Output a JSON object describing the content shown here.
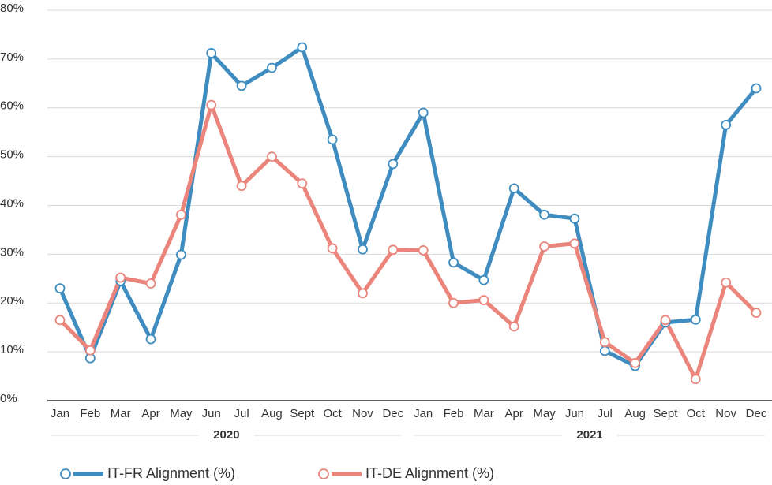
{
  "chart_data": {
    "type": "line",
    "categories": [
      "Jan",
      "Feb",
      "Mar",
      "Apr",
      "May",
      "Jun",
      "Jul",
      "Aug",
      "Sept",
      "Oct",
      "Nov",
      "Dec",
      "Jan",
      "Feb",
      "Mar",
      "Apr",
      "May",
      "Jun",
      "Jul",
      "Aug",
      "Sept",
      "Oct",
      "Nov",
      "Dec"
    ],
    "category_groups": [
      "2020",
      "2021"
    ],
    "series": [
      {
        "name": "IT-FR Alignment (%)",
        "color": "#3f8cc0",
        "values": [
          23,
          8.7,
          24.5,
          12.6,
          29.9,
          71.2,
          64.5,
          68.2,
          72.4,
          53.5,
          31,
          48.5,
          59,
          28.3,
          24.7,
          43.5,
          38.1,
          37.3,
          10.2,
          7.1,
          16,
          16.6,
          56.5,
          64
        ]
      },
      {
        "name": "IT-DE Alignment (%)",
        "color": "#eb857c",
        "values": [
          16.5,
          10.3,
          25.2,
          24,
          38.1,
          60.6,
          44,
          50,
          44.5,
          31.2,
          22,
          30.9,
          30.8,
          20,
          20.6,
          15.2,
          31.6,
          32.2,
          12,
          7.7,
          16.5,
          4.4,
          24.2,
          18
        ]
      }
    ],
    "ylim": [
      0,
      80
    ],
    "yticks": [
      {
        "value": 0,
        "label": "0%"
      },
      {
        "value": 10,
        "label": "10%"
      },
      {
        "value": 20,
        "label": "20%"
      },
      {
        "value": 30,
        "label": "30%"
      },
      {
        "value": 40,
        "label": "40%"
      },
      {
        "value": 50,
        "label": "50%"
      },
      {
        "value": 60,
        "label": "60%"
      },
      {
        "value": 70,
        "label": "70%"
      },
      {
        "value": 80,
        "label": "80%"
      }
    ],
    "grid": true,
    "legend": "bottom-left"
  }
}
